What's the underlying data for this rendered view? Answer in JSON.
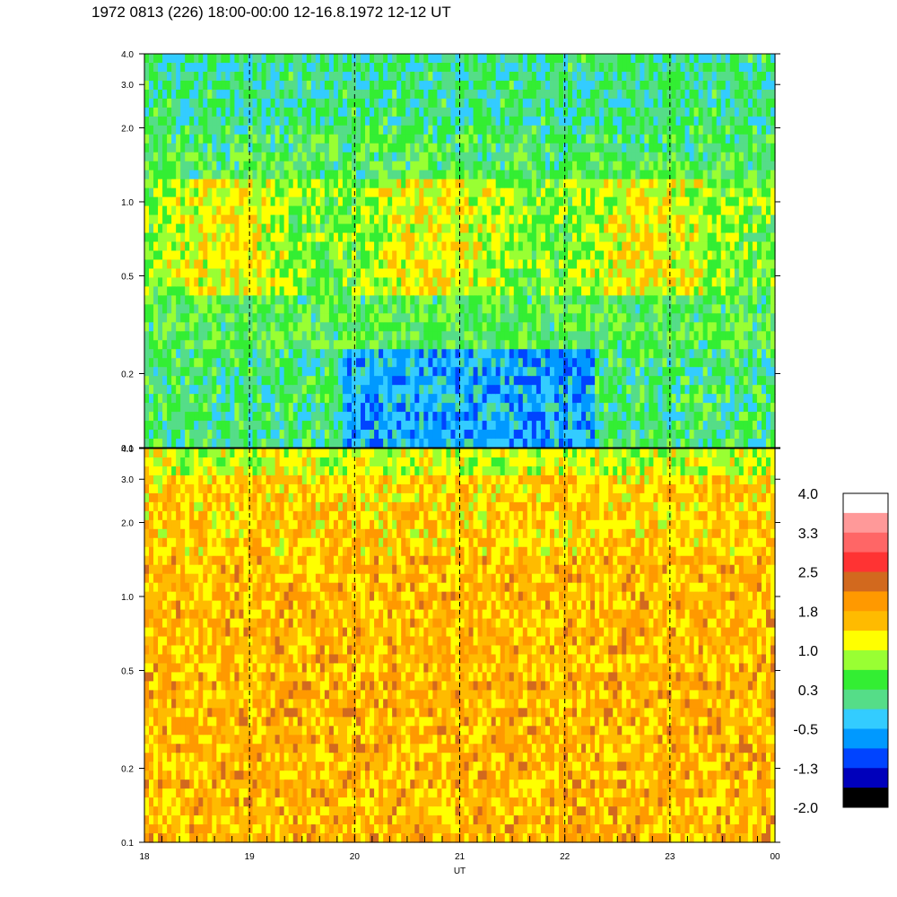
{
  "title": "1972 0813 (226) 18:00-00:00 12-16.8.1972  12-12 UT",
  "chart_data": [
    {
      "type": "heatmap",
      "panel": "top",
      "x": {
        "label": "UT",
        "range": [
          18,
          24
        ],
        "ticks": [
          "18",
          "19",
          "20",
          "21",
          "22",
          "23",
          "00"
        ],
        "tick_values": [
          18,
          19,
          20,
          21,
          22,
          23,
          24
        ]
      },
      "y": {
        "label": "",
        "scale": "log",
        "range": [
          0.1,
          4.0
        ],
        "ticks": [
          "0.1",
          "0.2",
          "0.5",
          "1.0",
          "2.0",
          "3.0",
          "4.0"
        ],
        "tick_values": [
          0.1,
          0.2,
          0.5,
          1.0,
          2.0,
          3.0,
          4.0
        ]
      },
      "hour_markers": [
        19,
        20,
        21,
        22,
        23
      ],
      "dominant_levels": {
        "high_freq": 0.3,
        "mid_freq": 0.8,
        "low_freq_after_20UT": -0.5,
        "low_freq_before_20UT": 0.3
      }
    },
    {
      "type": "heatmap",
      "panel": "bottom",
      "x": {
        "label": "UT",
        "range": [
          18,
          24
        ],
        "ticks": [
          "18",
          "19",
          "20",
          "21",
          "22",
          "23",
          "00"
        ],
        "tick_values": [
          18,
          19,
          20,
          21,
          22,
          23,
          24
        ]
      },
      "y": {
        "label": "",
        "scale": "log",
        "range": [
          0.1,
          4.0
        ],
        "ticks": [
          "0.1",
          "0.2",
          "0.5",
          "1.0",
          "2.0",
          "3.0",
          "4.0"
        ],
        "tick_values": [
          0.1,
          0.2,
          0.5,
          1.0,
          2.0,
          3.0,
          4.0
        ]
      },
      "hour_markers": [
        19,
        20,
        21,
        22,
        23
      ],
      "dominant_levels": {
        "high_freq": 1.0,
        "mid_freq": 1.6,
        "low_freq": 1.6
      }
    }
  ],
  "colorbar": {
    "labels": [
      "4.0",
      "3.3",
      "2.5",
      "1.8",
      "1.0",
      "0.3",
      "-0.5",
      "-1.3",
      "-2.0"
    ],
    "colors": [
      "#ffffff",
      "#ff9999",
      "#ff6666",
      "#ff3333",
      "#d2691e",
      "#ff9900",
      "#ffbb00",
      "#ffff00",
      "#99ff33",
      "#33ee33",
      "#55dd88",
      "#33ccff",
      "#0099ff",
      "#0044ff",
      "#0000bb",
      "#000000"
    ]
  },
  "x_axis_label": "UT"
}
